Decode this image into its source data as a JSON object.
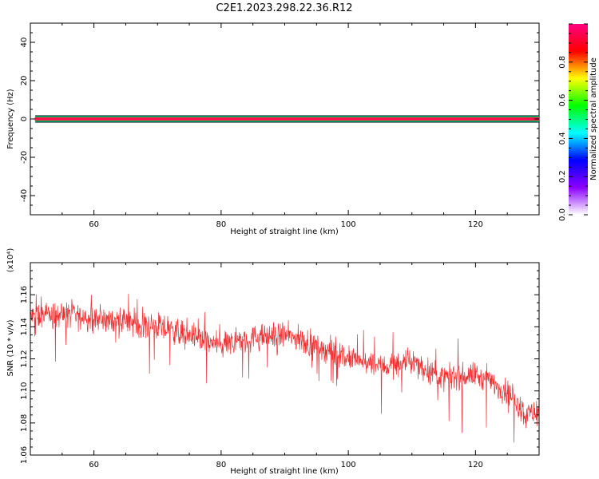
{
  "chart_data": [
    {
      "type": "heatmap",
      "title": "C2E1.2023.298.22.36.R12",
      "xlabel": "Height of straight line (km)",
      "ylabel": "Frequency (Hz)",
      "xlim": [
        50,
        130
      ],
      "ylim": [
        -50,
        50
      ],
      "x_ticks": [
        60,
        80,
        100,
        120
      ],
      "y_ticks": [
        -40,
        -20,
        0,
        20,
        40
      ],
      "grid": false,
      "band": {
        "center_hz": 0,
        "description": "narrow high-amplitude band at 0 Hz across full height range"
      },
      "colorbar": {
        "label": "Normalized spectral amplitude",
        "range": [
          0,
          1
        ],
        "ticks": [
          0.0,
          0.2,
          0.4,
          0.6,
          0.8
        ],
        "colors": [
          "#ffffff",
          "#8b00ff",
          "#0000ff",
          "#00ffff",
          "#00ff00",
          "#ffff00",
          "#ff0000",
          "#ff0080"
        ]
      }
    },
    {
      "type": "line",
      "xlabel": "Height of straight line (km)",
      "ylabel": "SNR (10 * v/v)",
      "scale_label": "(x10⁴)",
      "xlim": [
        50,
        130
      ],
      "ylim": [
        1.06,
        1.18
      ],
      "x_ticks": [
        60,
        80,
        100,
        120
      ],
      "y_ticks": [
        1.06,
        1.08,
        1.1,
        1.12,
        1.14,
        1.16
      ],
      "grid": false,
      "series": [
        {
          "color": "#f03030",
          "trend_x": [
            50,
            55,
            60,
            65,
            70,
            75,
            80,
            85,
            90,
            95,
            100,
            105,
            110,
            115,
            120,
            125,
            128,
            130
          ],
          "trend_y": [
            1.146,
            1.148,
            1.145,
            1.143,
            1.14,
            1.135,
            1.128,
            1.133,
            1.135,
            1.128,
            1.12,
            1.115,
            1.118,
            1.108,
            1.11,
            1.1,
            1.085,
            1.088
          ],
          "noise_amplitude": 0.012
        }
      ]
    }
  ]
}
